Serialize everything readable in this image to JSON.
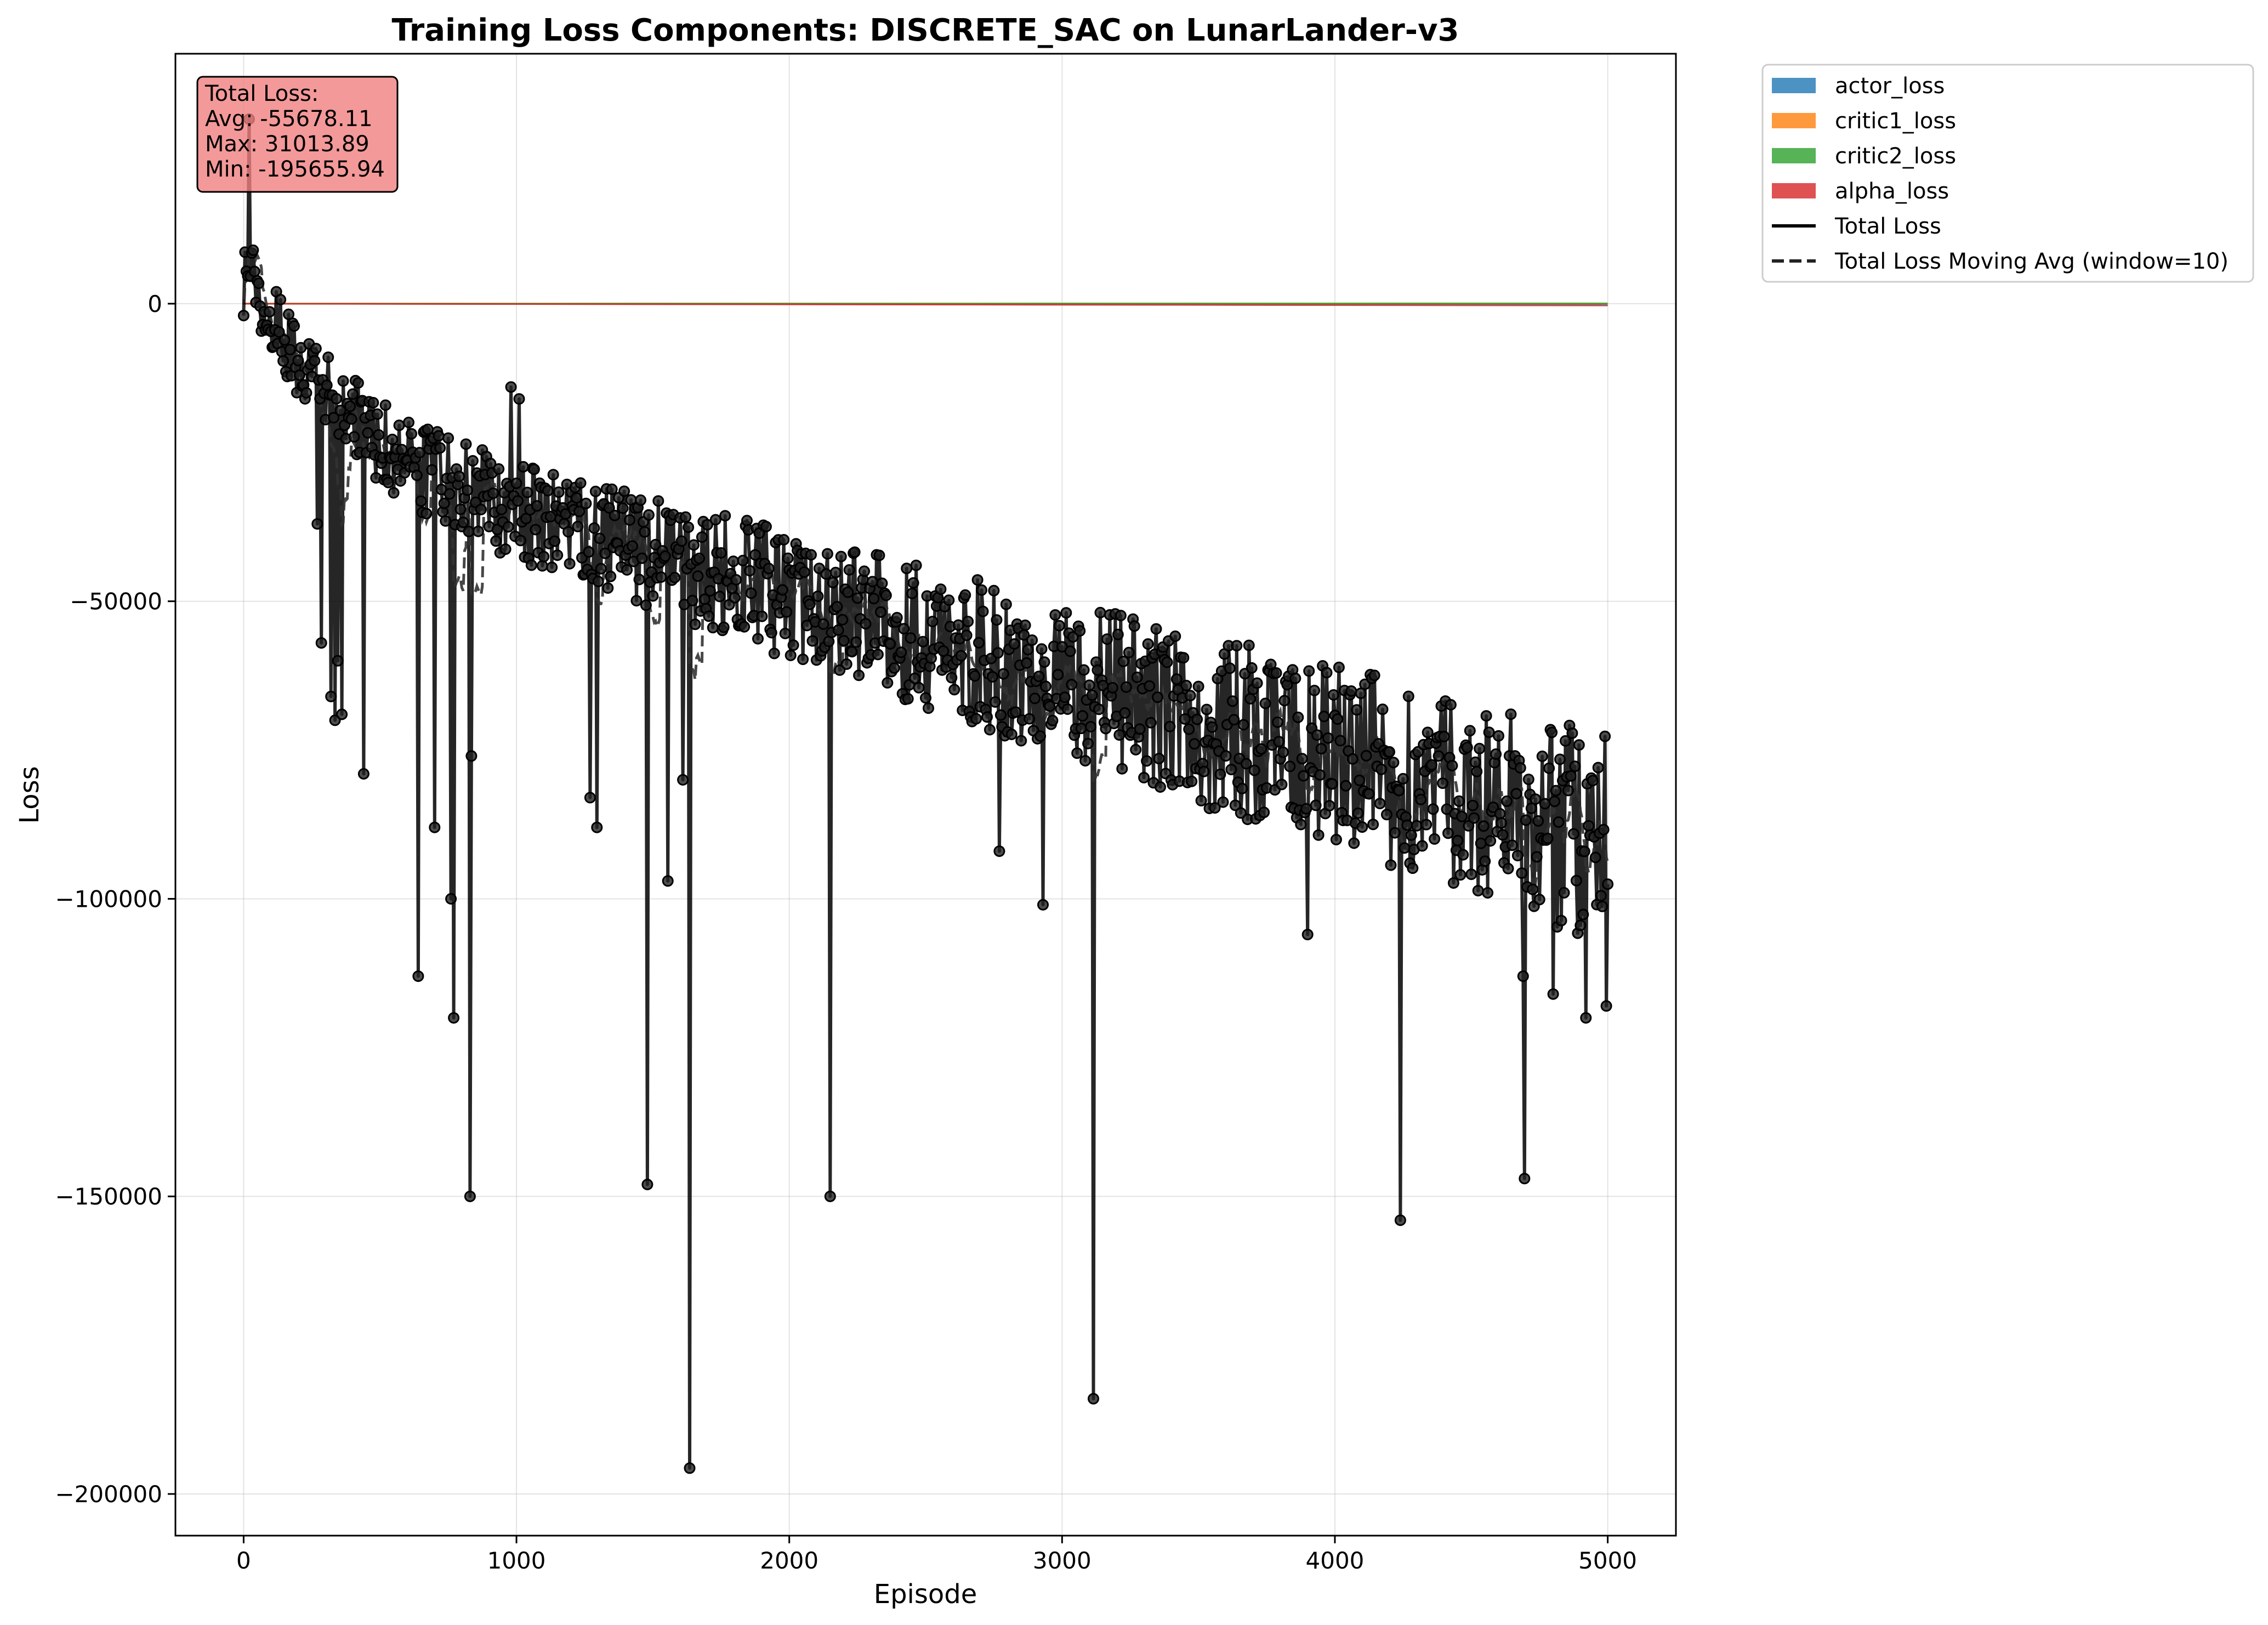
{
  "chart_data": {
    "type": "line",
    "title": "Training Loss Components: DISCRETE_SAC on LunarLander-v3",
    "xlabel": "Episode",
    "ylabel": "Loss",
    "xlim": [
      -250,
      5250
    ],
    "ylim": [
      -207000,
      42000
    ],
    "x_ticks": [
      0,
      1000,
      2000,
      3000,
      4000,
      5000
    ],
    "y_ticks": [
      0,
      -50000,
      -100000,
      -150000,
      -200000
    ],
    "x_tick_labels": [
      "0",
      "1000",
      "2000",
      "3000",
      "4000",
      "5000"
    ],
    "y_tick_labels": [
      "0",
      "−50000",
      "−100000",
      "−150000",
      "−200000"
    ],
    "grid": true,
    "legend_placement": "outside-top-right",
    "stacked_components": [
      {
        "name": "actor_loss",
        "color": "#1f77b4",
        "values_at": {
          "x": [
            0,
            5000
          ],
          "y": [
            0,
            -150
          ]
        }
      },
      {
        "name": "critic1_loss",
        "color": "#ff7f0e",
        "values_at": {
          "x": [
            0,
            5000
          ],
          "y": [
            0,
            40
          ]
        }
      },
      {
        "name": "critic2_loss",
        "color": "#2ca02c",
        "values_at": {
          "x": [
            0,
            5000
          ],
          "y": [
            0,
            40
          ]
        }
      },
      {
        "name": "alpha_loss",
        "color": "#d62728",
        "values_at": {
          "x": [
            0,
            5000
          ],
          "y": [
            0,
            -300
          ]
        }
      }
    ],
    "total_series": {
      "name": "Total Loss",
      "color": "#000000",
      "style": "solid-with-markers"
    },
    "moving_avg_series": {
      "name": "Total Loss Moving Avg (window=10)",
      "color": "#222222",
      "style": "dashed"
    },
    "trend": {
      "x": [
        0,
        10,
        30,
        60,
        100,
        200,
        300,
        400,
        500,
        700,
        1000,
        1500,
        2000,
        2500,
        3000,
        3500,
        4000,
        4500,
        5000
      ],
      "y": [
        2000,
        8000,
        6000,
        0,
        -3000,
        -9000,
        -15000,
        -19000,
        -23000,
        -29000,
        -35000,
        -42000,
        -49000,
        -56000,
        -63000,
        -70000,
        -76000,
        -83000,
        -90000
      ]
    },
    "spikes": [
      {
        "x": 20,
        "y": 31013.89
      },
      {
        "x": 270,
        "y": -37000
      },
      {
        "x": 285,
        "y": -57000
      },
      {
        "x": 320,
        "y": -66000
      },
      {
        "x": 335,
        "y": -70000
      },
      {
        "x": 345,
        "y": -60000
      },
      {
        "x": 360,
        "y": -69000
      },
      {
        "x": 440,
        "y": -79000
      },
      {
        "x": 640,
        "y": -113000
      },
      {
        "x": 700,
        "y": -88000
      },
      {
        "x": 760,
        "y": -100000
      },
      {
        "x": 770,
        "y": -120000
      },
      {
        "x": 830,
        "y": -150000
      },
      {
        "x": 835,
        "y": -76000
      },
      {
        "x": 980,
        "y": -14000
      },
      {
        "x": 1010,
        "y": -16000
      },
      {
        "x": 1270,
        "y": -83000
      },
      {
        "x": 1295,
        "y": -88000
      },
      {
        "x": 1480,
        "y": -148000
      },
      {
        "x": 1555,
        "y": -97000
      },
      {
        "x": 1610,
        "y": -80000
      },
      {
        "x": 1635,
        "y": -195655.94
      },
      {
        "x": 2150,
        "y": -150000
      },
      {
        "x": 2770,
        "y": -92000
      },
      {
        "x": 2930,
        "y": -101000
      },
      {
        "x": 3115,
        "y": -184000
      },
      {
        "x": 3900,
        "y": -106000
      },
      {
        "x": 4240,
        "y": -154000
      },
      {
        "x": 4690,
        "y": -113000
      },
      {
        "x": 4695,
        "y": -147000
      },
      {
        "x": 4800,
        "y": -116000
      },
      {
        "x": 4920,
        "y": -120000
      },
      {
        "x": 4995,
        "y": -118000
      }
    ],
    "stats": {
      "heading": "Total Loss:",
      "avg": "Avg: -55678.11",
      "max": "Max: 31013.89",
      "min": "Min: -195655.94",
      "box_color": "#f08080"
    }
  }
}
